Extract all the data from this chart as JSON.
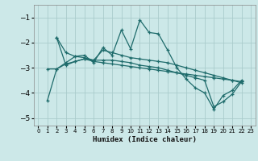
{
  "xlabel": "Humidex (Indice chaleur)",
  "xlim": [
    -0.5,
    23.5
  ],
  "ylim": [
    -5.3,
    -0.5
  ],
  "yticks": [
    -5,
    -4,
    -3,
    -2,
    -1
  ],
  "xticks": [
    0,
    1,
    2,
    3,
    4,
    5,
    6,
    7,
    8,
    9,
    10,
    11,
    12,
    13,
    14,
    15,
    16,
    17,
    18,
    19,
    20,
    21,
    22,
    23
  ],
  "bg_color": "#cce8e8",
  "grid_color": "#aacccc",
  "line_color": "#1e6b6b",
  "s1_x": [
    1,
    2,
    3,
    4,
    5,
    6,
    7,
    8,
    9,
    10,
    11,
    12,
    13,
    14,
    15,
    16,
    17,
    18,
    19,
    20,
    21,
    22
  ],
  "s1_y": [
    -4.3,
    -3.05,
    -2.8,
    -2.55,
    -2.5,
    -2.8,
    -2.2,
    -2.5,
    -1.5,
    -2.25,
    -1.1,
    -1.6,
    -1.65,
    -2.3,
    -3.0,
    -3.45,
    -3.8,
    -4.0,
    -4.65,
    -4.1,
    -3.9,
    -3.5
  ],
  "s2_x": [
    2,
    3,
    4,
    5,
    6,
    7,
    8,
    9,
    10,
    11,
    12,
    13,
    14,
    15,
    16,
    17,
    18,
    19,
    20,
    21,
    22
  ],
  "s2_y": [
    -1.8,
    -2.4,
    -2.55,
    -2.6,
    -2.7,
    -2.3,
    -2.4,
    -2.5,
    -2.6,
    -2.65,
    -2.7,
    -2.75,
    -2.8,
    -2.9,
    -3.0,
    -3.1,
    -3.2,
    -3.3,
    -3.4,
    -3.5,
    -3.6
  ],
  "s3_x": [
    2,
    3,
    4,
    5,
    6,
    7,
    8,
    9,
    10,
    11,
    12,
    13,
    14,
    15,
    16,
    17,
    18,
    19,
    20,
    21,
    22
  ],
  "s3_y": [
    -1.8,
    -2.9,
    -2.75,
    -2.65,
    -2.75,
    -2.8,
    -2.85,
    -2.9,
    -2.95,
    -3.0,
    -3.05,
    -3.1,
    -3.15,
    -3.2,
    -3.25,
    -3.3,
    -3.35,
    -3.4,
    -3.45,
    -3.5,
    -3.55
  ],
  "s4_x": [
    1,
    2,
    3,
    4,
    5,
    6,
    7,
    8,
    9,
    10,
    11,
    12,
    13,
    14,
    15,
    16,
    17,
    18,
    19,
    20,
    21,
    22
  ],
  "s4_y": [
    -3.05,
    -3.05,
    -2.85,
    -2.75,
    -2.65,
    -2.7,
    -2.7,
    -2.7,
    -2.75,
    -2.8,
    -2.9,
    -2.95,
    -3.0,
    -3.1,
    -3.2,
    -3.3,
    -3.4,
    -3.5,
    -4.55,
    -4.35,
    -4.05,
    -3.55
  ]
}
